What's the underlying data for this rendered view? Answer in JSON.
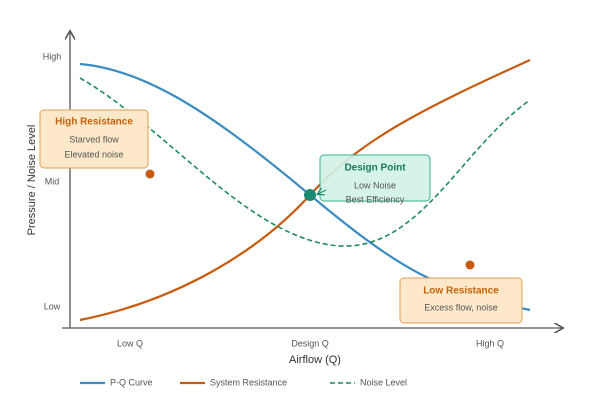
{
  "axes": {
    "y_label": "Pressure / Noise Level",
    "x_label": "Airflow (Q)",
    "y_ticks": [
      "Low",
      "Mid",
      "High"
    ],
    "x_ticks": [
      "Low Q",
      "Design Q",
      "High Q"
    ]
  },
  "legend": [
    "P-Q Curve",
    "System Resistance",
    "Noise Level"
  ],
  "callouts": [
    {
      "title": "High Resistance",
      "lines": [
        "Starved flow",
        "Elevated noise"
      ]
    },
    {
      "title": "Design Point",
      "lines": [
        "Low Noise",
        "Best Efficiency"
      ]
    },
    {
      "title": "Low Resistance",
      "lines": [
        "Excess flow, noise"
      ]
    }
  ]
}
